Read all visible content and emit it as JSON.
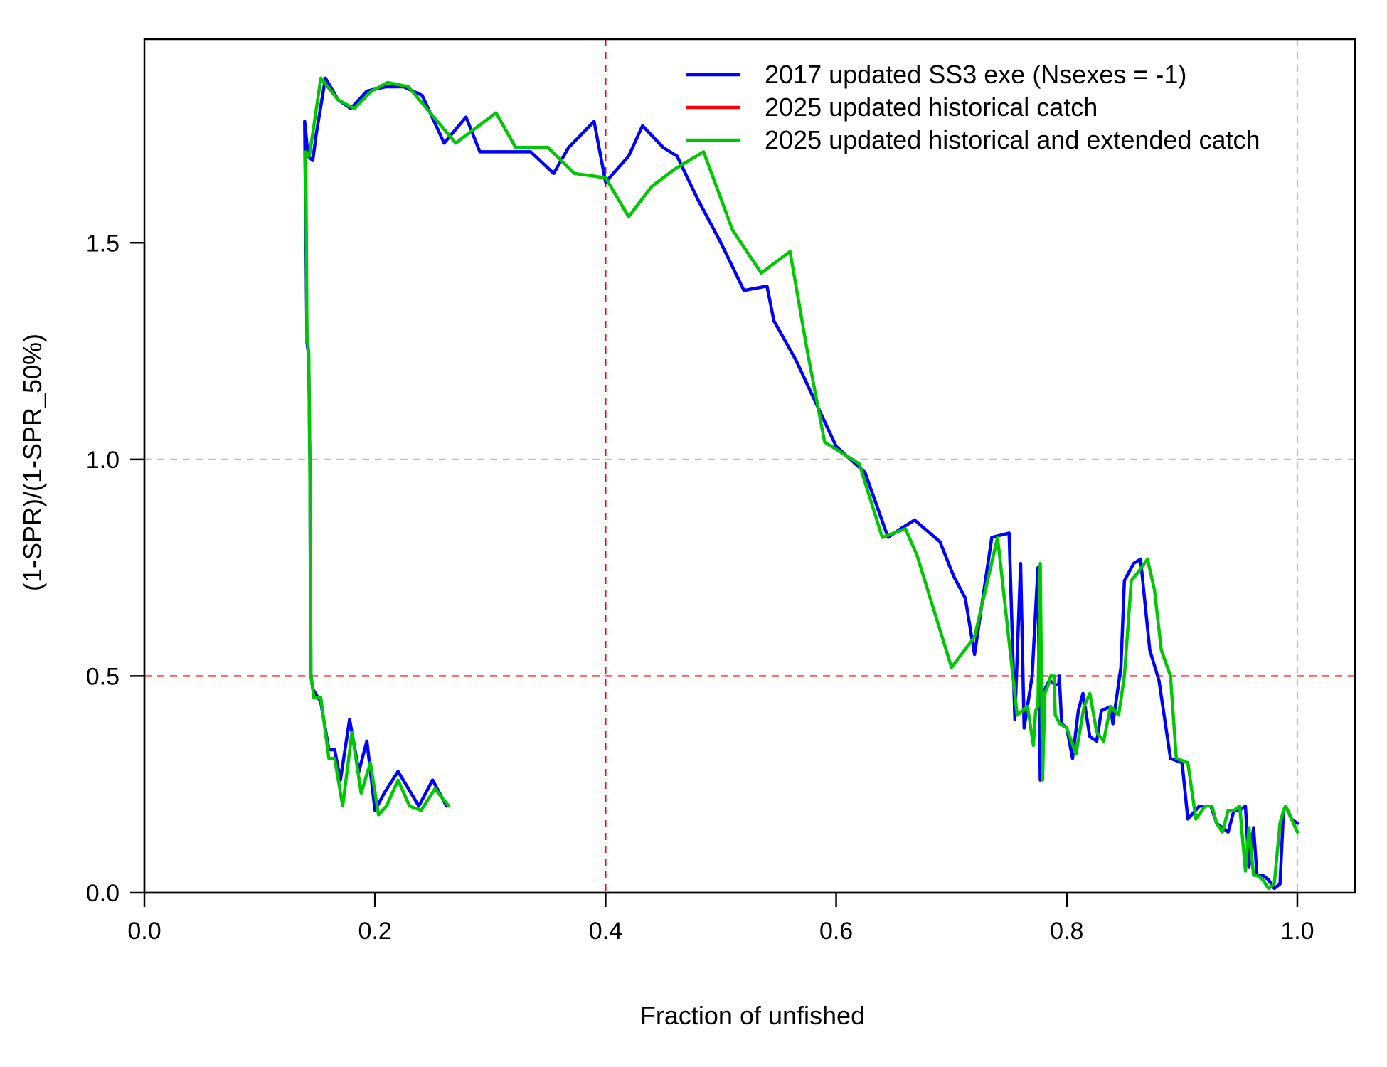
{
  "chart_data": {
    "type": "line",
    "xlabel": "Fraction of unfished",
    "ylabel": "(1-SPR)/(1-SPR_50%)",
    "xlim": [
      0,
      1.05
    ],
    "ylim": [
      0,
      1.97
    ],
    "x_ticks": [
      "0.0",
      "0.2",
      "0.4",
      "0.6",
      "0.8",
      "1.0"
    ],
    "y_ticks": [
      "0.0",
      "0.5",
      "1.0",
      "1.5"
    ],
    "grid": false,
    "legend_position": "top-right",
    "reference_lines": [
      {
        "axis": "x",
        "value": 0.4,
        "color": "#ff0000"
      },
      {
        "axis": "y",
        "value": 0.5,
        "color": "#ff0000"
      },
      {
        "axis": "x",
        "value": 1.0,
        "color": "#bebebe"
      },
      {
        "axis": "y",
        "value": 1.0,
        "color": "#bebebe"
      }
    ],
    "series": [
      {
        "name": "2017 updated SS3 exe (Nsexes = -1)",
        "color": "#0000ff",
        "x": [
          0.262,
          0.25,
          0.238,
          0.22,
          0.208,
          0.2,
          0.193,
          0.186,
          0.178,
          0.17,
          0.165,
          0.16,
          0.153,
          0.146,
          0.1445,
          0.144,
          0.1435,
          0.1425,
          0.141,
          0.139,
          0.142,
          0.146,
          0.149,
          0.157,
          0.168,
          0.179,
          0.193,
          0.209,
          0.225,
          0.241,
          0.26,
          0.279,
          0.291,
          0.309,
          0.335,
          0.355,
          0.368,
          0.39,
          0.4,
          0.42,
          0.432,
          0.45,
          0.462,
          0.48,
          0.5,
          0.52,
          0.54,
          0.546,
          0.565,
          0.6,
          0.625,
          0.645,
          0.656,
          0.668,
          0.69,
          0.702,
          0.712,
          0.72,
          0.735,
          0.75,
          0.755,
          0.76,
          0.763,
          0.77,
          0.775,
          0.777,
          0.779,
          0.781,
          0.785,
          0.79,
          0.793,
          0.7935,
          0.795,
          0.7955,
          0.8,
          0.805,
          0.81,
          0.814,
          0.82,
          0.826,
          0.83,
          0.838,
          0.84,
          0.847,
          0.85,
          0.858,
          0.864,
          0.872,
          0.88,
          0.89,
          0.9,
          0.905,
          0.915,
          0.925,
          0.93,
          0.94,
          0.945,
          0.95,
          0.955,
          0.958,
          0.962,
          0.965,
          0.97,
          0.975,
          0.98,
          0.985,
          0.988,
          0.99,
          0.995,
          1.0
        ],
        "y": [
          0.2,
          0.26,
          0.2,
          0.28,
          0.23,
          0.19,
          0.35,
          0.28,
          0.4,
          0.26,
          0.33,
          0.33,
          0.44,
          0.47,
          0.5,
          0.7,
          1.0,
          1.24,
          1.27,
          1.78,
          1.7,
          1.69,
          1.75,
          1.88,
          1.83,
          1.81,
          1.85,
          1.86,
          1.86,
          1.84,
          1.73,
          1.79,
          1.71,
          1.71,
          1.71,
          1.66,
          1.72,
          1.78,
          1.64,
          1.7,
          1.77,
          1.72,
          1.7,
          1.6,
          1.5,
          1.39,
          1.4,
          1.32,
          1.23,
          1.03,
          0.97,
          0.82,
          0.84,
          0.86,
          0.81,
          0.73,
          0.68,
          0.55,
          0.82,
          0.83,
          0.4,
          0.76,
          0.38,
          0.5,
          0.75,
          0.26,
          0.4,
          0.47,
          0.49,
          0.48,
          0.48,
          0.5,
          0.42,
          0.39,
          0.38,
          0.31,
          0.42,
          0.46,
          0.36,
          0.35,
          0.42,
          0.43,
          0.39,
          0.52,
          0.72,
          0.76,
          0.77,
          0.56,
          0.49,
          0.31,
          0.3,
          0.17,
          0.2,
          0.2,
          0.16,
          0.14,
          0.19,
          0.19,
          0.2,
          0.06,
          0.15,
          0.04,
          0.04,
          0.03,
          0.01,
          0.02,
          0.19,
          0.2,
          0.17,
          0.16
        ]
      },
      {
        "name": "2025 updated historical catch",
        "color": "#ff0000",
        "x": [],
        "y": []
      },
      {
        "name": "2025 updated historical and extended catch",
        "color": "#00c800",
        "x": [
          0.264,
          0.252,
          0.24,
          0.23,
          0.22,
          0.21,
          0.203,
          0.196,
          0.188,
          0.18,
          0.172,
          0.165,
          0.16,
          0.153,
          0.147,
          0.1445,
          0.144,
          0.1435,
          0.1425,
          0.141,
          0.14,
          0.143,
          0.147,
          0.153,
          0.168,
          0.182,
          0.197,
          0.211,
          0.229,
          0.27,
          0.305,
          0.322,
          0.35,
          0.373,
          0.4,
          0.42,
          0.44,
          0.46,
          0.485,
          0.51,
          0.535,
          0.56,
          0.575,
          0.59,
          0.62,
          0.64,
          0.66,
          0.67,
          0.685,
          0.7,
          0.72,
          0.74,
          0.757,
          0.766,
          0.771,
          0.773,
          0.775,
          0.777,
          0.779,
          0.781,
          0.784,
          0.786,
          0.789,
          0.79,
          0.794,
          0.8,
          0.808,
          0.815,
          0.82,
          0.826,
          0.832,
          0.838,
          0.845,
          0.85,
          0.856,
          0.862,
          0.87,
          0.876,
          0.882,
          0.89,
          0.895,
          0.905,
          0.912,
          0.92,
          0.926,
          0.93,
          0.935,
          0.94,
          0.945,
          0.95,
          0.955,
          0.958,
          0.962,
          0.965,
          0.97,
          0.975,
          0.98,
          0.985,
          0.988,
          0.99,
          0.995,
          1.0
        ],
        "y": [
          0.2,
          0.24,
          0.19,
          0.2,
          0.26,
          0.2,
          0.18,
          0.3,
          0.23,
          0.37,
          0.2,
          0.31,
          0.31,
          0.45,
          0.45,
          0.5,
          0.72,
          1.0,
          1.25,
          1.28,
          1.71,
          1.7,
          1.77,
          1.88,
          1.83,
          1.81,
          1.85,
          1.87,
          1.86,
          1.73,
          1.8,
          1.72,
          1.72,
          1.66,
          1.65,
          1.56,
          1.63,
          1.67,
          1.71,
          1.53,
          1.43,
          1.48,
          1.25,
          1.04,
          0.99,
          0.82,
          0.84,
          0.78,
          0.65,
          0.52,
          0.59,
          0.82,
          0.41,
          0.43,
          0.34,
          0.42,
          0.43,
          0.76,
          0.26,
          0.46,
          0.48,
          0.5,
          0.5,
          0.41,
          0.39,
          0.38,
          0.32,
          0.43,
          0.46,
          0.37,
          0.35,
          0.43,
          0.41,
          0.5,
          0.72,
          0.74,
          0.77,
          0.7,
          0.56,
          0.5,
          0.31,
          0.3,
          0.17,
          0.2,
          0.2,
          0.16,
          0.14,
          0.19,
          0.19,
          0.2,
          0.05,
          0.15,
          0.04,
          0.04,
          0.03,
          0.01,
          0.02,
          0.16,
          0.19,
          0.2,
          0.17,
          0.14
        ]
      }
    ]
  }
}
